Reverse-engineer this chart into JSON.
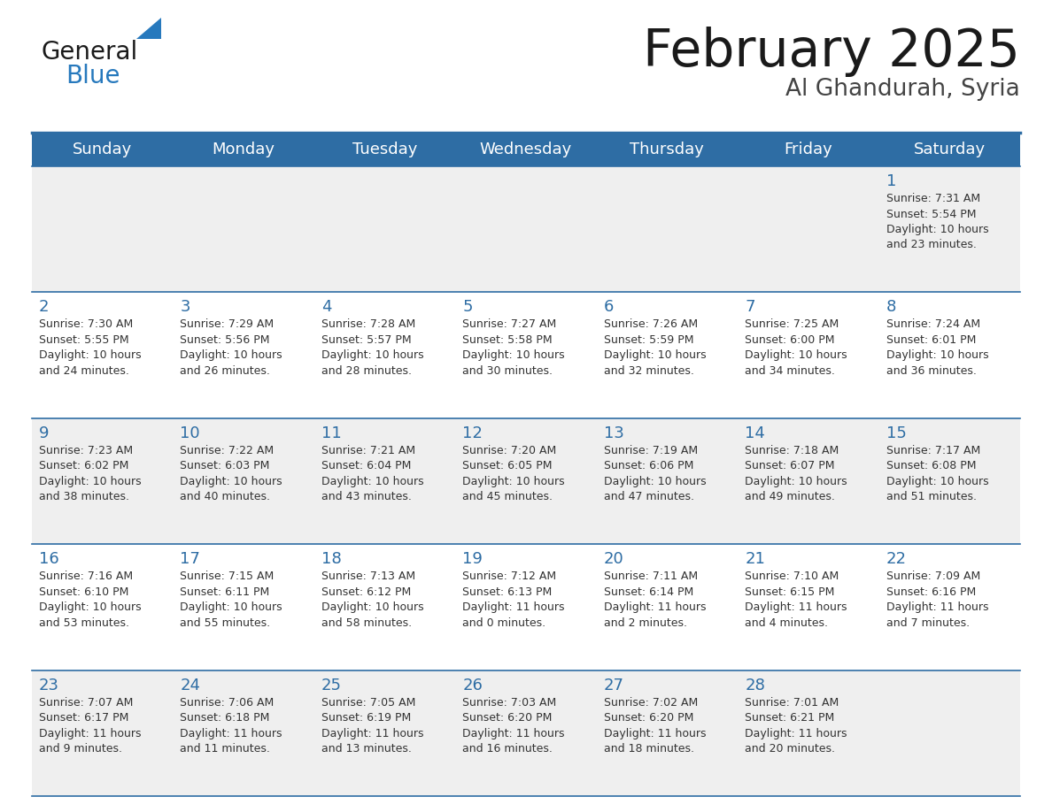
{
  "title": "February 2025",
  "subtitle": "Al Ghandurah, Syria",
  "header_bg": "#2E6DA4",
  "header_text_color": "#FFFFFF",
  "days_of_week": [
    "Sunday",
    "Monday",
    "Tuesday",
    "Wednesday",
    "Thursday",
    "Friday",
    "Saturday"
  ],
  "cell_bg_even": "#EFEFEF",
  "cell_bg_odd": "#FFFFFF",
  "cell_border": "#2E6DA4",
  "day_number_color": "#2E6DA4",
  "info_text_color": "#333333",
  "calendar_data": [
    [
      null,
      null,
      null,
      null,
      null,
      null,
      {
        "day": "1",
        "sunrise": "7:31 AM",
        "sunset": "5:54 PM",
        "daylight": "10 hours\nand 23 minutes."
      }
    ],
    [
      {
        "day": "2",
        "sunrise": "7:30 AM",
        "sunset": "5:55 PM",
        "daylight": "10 hours\nand 24 minutes."
      },
      {
        "day": "3",
        "sunrise": "7:29 AM",
        "sunset": "5:56 PM",
        "daylight": "10 hours\nand 26 minutes."
      },
      {
        "day": "4",
        "sunrise": "7:28 AM",
        "sunset": "5:57 PM",
        "daylight": "10 hours\nand 28 minutes."
      },
      {
        "day": "5",
        "sunrise": "7:27 AM",
        "sunset": "5:58 PM",
        "daylight": "10 hours\nand 30 minutes."
      },
      {
        "day": "6",
        "sunrise": "7:26 AM",
        "sunset": "5:59 PM",
        "daylight": "10 hours\nand 32 minutes."
      },
      {
        "day": "7",
        "sunrise": "7:25 AM",
        "sunset": "6:00 PM",
        "daylight": "10 hours\nand 34 minutes."
      },
      {
        "day": "8",
        "sunrise": "7:24 AM",
        "sunset": "6:01 PM",
        "daylight": "10 hours\nand 36 minutes."
      }
    ],
    [
      {
        "day": "9",
        "sunrise": "7:23 AM",
        "sunset": "6:02 PM",
        "daylight": "10 hours\nand 38 minutes."
      },
      {
        "day": "10",
        "sunrise": "7:22 AM",
        "sunset": "6:03 PM",
        "daylight": "10 hours\nand 40 minutes."
      },
      {
        "day": "11",
        "sunrise": "7:21 AM",
        "sunset": "6:04 PM",
        "daylight": "10 hours\nand 43 minutes."
      },
      {
        "day": "12",
        "sunrise": "7:20 AM",
        "sunset": "6:05 PM",
        "daylight": "10 hours\nand 45 minutes."
      },
      {
        "day": "13",
        "sunrise": "7:19 AM",
        "sunset": "6:06 PM",
        "daylight": "10 hours\nand 47 minutes."
      },
      {
        "day": "14",
        "sunrise": "7:18 AM",
        "sunset": "6:07 PM",
        "daylight": "10 hours\nand 49 minutes."
      },
      {
        "day": "15",
        "sunrise": "7:17 AM",
        "sunset": "6:08 PM",
        "daylight": "10 hours\nand 51 minutes."
      }
    ],
    [
      {
        "day": "16",
        "sunrise": "7:16 AM",
        "sunset": "6:10 PM",
        "daylight": "10 hours\nand 53 minutes."
      },
      {
        "day": "17",
        "sunrise": "7:15 AM",
        "sunset": "6:11 PM",
        "daylight": "10 hours\nand 55 minutes."
      },
      {
        "day": "18",
        "sunrise": "7:13 AM",
        "sunset": "6:12 PM",
        "daylight": "10 hours\nand 58 minutes."
      },
      {
        "day": "19",
        "sunrise": "7:12 AM",
        "sunset": "6:13 PM",
        "daylight": "11 hours\nand 0 minutes."
      },
      {
        "day": "20",
        "sunrise": "7:11 AM",
        "sunset": "6:14 PM",
        "daylight": "11 hours\nand 2 minutes."
      },
      {
        "day": "21",
        "sunrise": "7:10 AM",
        "sunset": "6:15 PM",
        "daylight": "11 hours\nand 4 minutes."
      },
      {
        "day": "22",
        "sunrise": "7:09 AM",
        "sunset": "6:16 PM",
        "daylight": "11 hours\nand 7 minutes."
      }
    ],
    [
      {
        "day": "23",
        "sunrise": "7:07 AM",
        "sunset": "6:17 PM",
        "daylight": "11 hours\nand 9 minutes."
      },
      {
        "day": "24",
        "sunrise": "7:06 AM",
        "sunset": "6:18 PM",
        "daylight": "11 hours\nand 11 minutes."
      },
      {
        "day": "25",
        "sunrise": "7:05 AM",
        "sunset": "6:19 PM",
        "daylight": "11 hours\nand 13 minutes."
      },
      {
        "day": "26",
        "sunrise": "7:03 AM",
        "sunset": "6:20 PM",
        "daylight": "11 hours\nand 16 minutes."
      },
      {
        "day": "27",
        "sunrise": "7:02 AM",
        "sunset": "6:20 PM",
        "daylight": "11 hours\nand 18 minutes."
      },
      {
        "day": "28",
        "sunrise": "7:01 AM",
        "sunset": "6:21 PM",
        "daylight": "11 hours\nand 20 minutes."
      },
      null
    ]
  ],
  "logo_text1": "General",
  "logo_text2": "Blue",
  "logo_color1": "#1a1a1a",
  "logo_color2": "#2779BD",
  "logo_triangle_color": "#2779BD",
  "fig_width": 11.88,
  "fig_height": 9.18,
  "dpi": 100
}
